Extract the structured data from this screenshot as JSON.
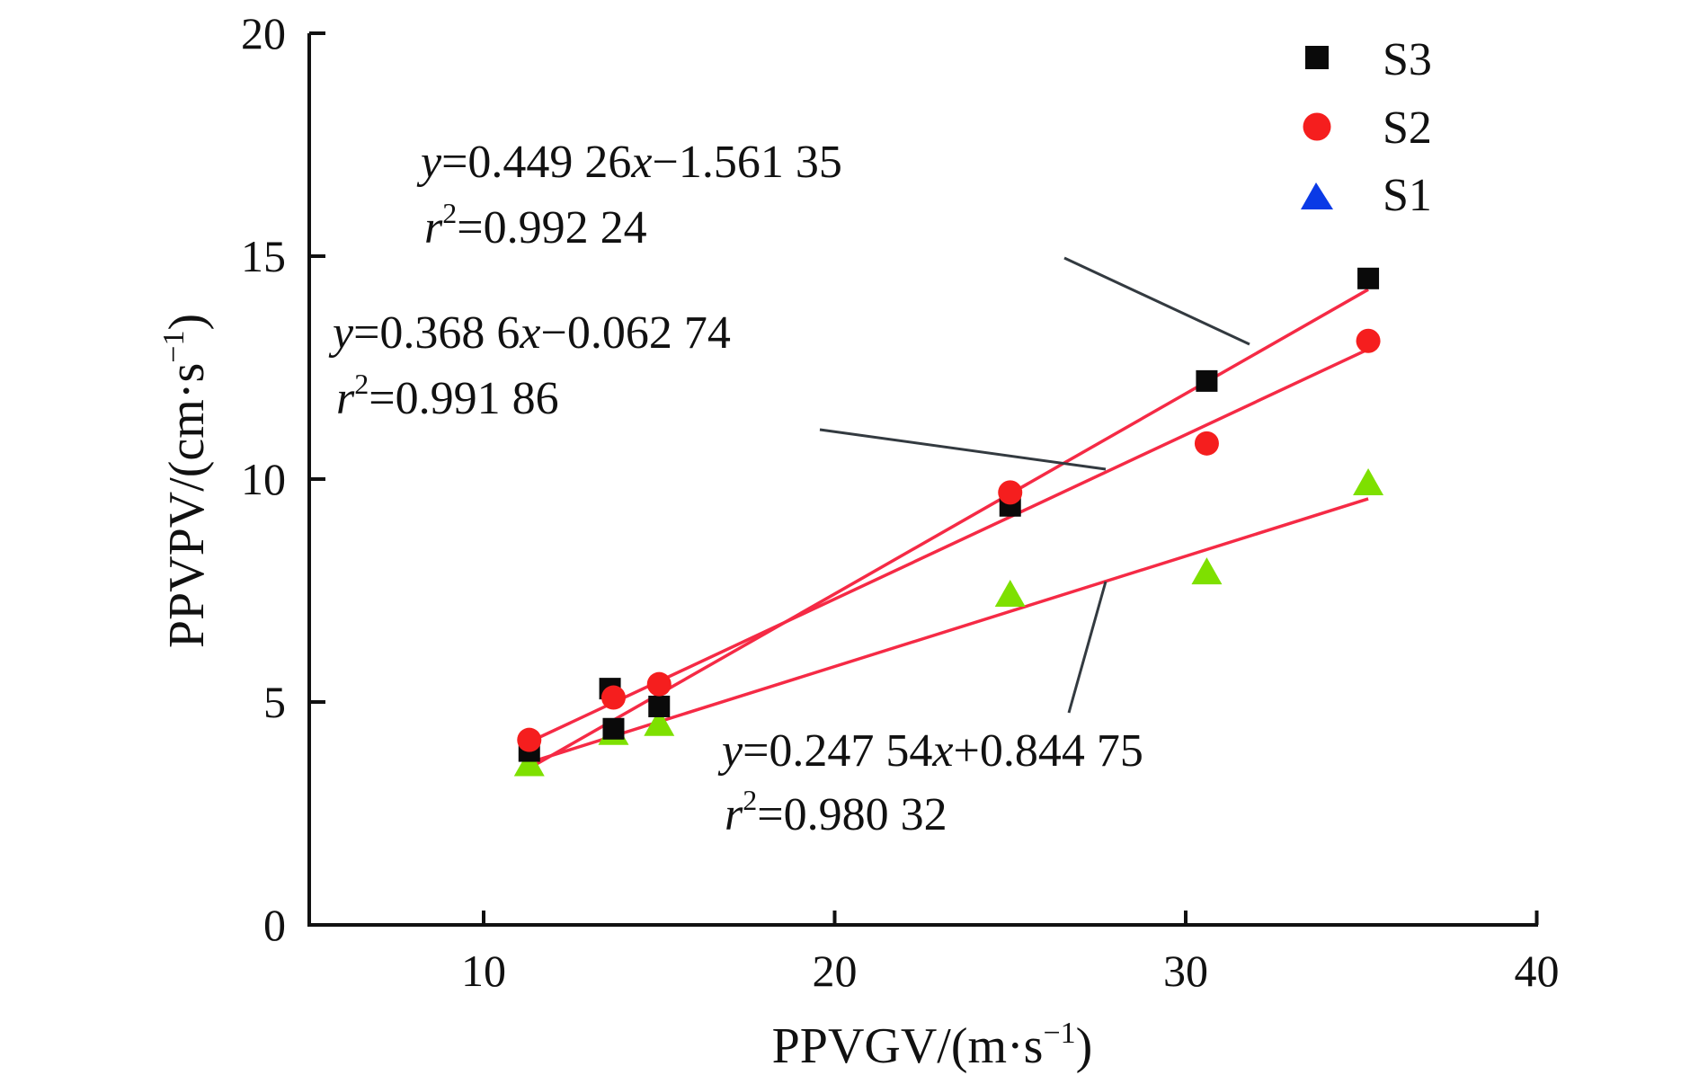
{
  "chart_data": {
    "type": "scatter",
    "title": "",
    "xlabel": "PPVGV/(m·s",
    "xlabel_sup": "−1",
    "xlabel_close": ")",
    "ylabel": "PPVPV/(cm·s",
    "ylabel_sup": "−1",
    "ylabel_close": ")",
    "xlim": [
      5,
      40
    ],
    "ylim": [
      0,
      20
    ],
    "xticks": [
      10,
      20,
      30,
      40
    ],
    "yticks": [
      0,
      5,
      10,
      15,
      20
    ],
    "xtick_labels": [
      "10",
      "20",
      "30",
      "40"
    ],
    "ytick_labels": [
      "0",
      "5",
      "10",
      "15",
      "20"
    ],
    "grid": false,
    "legend_position": "top-right",
    "series": [
      {
        "name": "S3",
        "marker": "square",
        "color": "#0a0a0a",
        "legend_color": "#0a0a0a",
        "x": [
          11.3,
          13.6,
          13.7,
          15.0,
          25.0,
          30.6,
          35.2
        ],
        "y": [
          3.9,
          5.3,
          4.4,
          4.9,
          9.4,
          12.2,
          14.5
        ],
        "fit": {
          "slope": 0.44926,
          "intercept": -1.56135,
          "x_range": [
            11.3,
            35.2
          ]
        },
        "equation": {
          "y_prefix": "y",
          "eq_body": "=0.449 26",
          "x_var": "x",
          "eq_tail": "−1.561 35",
          "r_var": "r",
          "r_sup": "2",
          "r_value": "=0.992 24"
        }
      },
      {
        "name": "S2",
        "marker": "circle",
        "color": "#f51e1e",
        "legend_color": "#f51e1e",
        "x": [
          11.3,
          13.7,
          15.0,
          25.0,
          30.6,
          35.2
        ],
        "y": [
          4.15,
          5.1,
          5.4,
          9.7,
          10.8,
          13.1
        ],
        "fit": {
          "slope": 0.3686,
          "intercept": -0.06274,
          "x_range": [
            11.3,
            35.2
          ]
        },
        "equation": {
          "y_prefix": "y",
          "eq_body": "=0.368 6",
          "x_var": "x",
          "eq_tail": "−0.062 74",
          "r_var": "r",
          "r_sup": "2",
          "r_value": "=0.991 86"
        }
      },
      {
        "name": "S1",
        "marker": "triangle",
        "color": "#7ee000",
        "legend_color": "#0a3ae6",
        "x": [
          11.3,
          13.7,
          15.0,
          25.0,
          30.6,
          35.2
        ],
        "y": [
          3.6,
          4.3,
          4.5,
          7.4,
          7.9,
          9.9
        ],
        "fit": {
          "slope": 0.24754,
          "intercept": 0.84475,
          "x_range": [
            11.3,
            35.2
          ]
        },
        "equation": {
          "y_prefix": "y",
          "eq_body": "=0.247 54",
          "x_var": "x",
          "eq_tail": "+0.844 75",
          "r_var": "r",
          "r_sup": "2",
          "r_value": "=0.980 32"
        }
      }
    ],
    "fit_line_color": "#f52a45",
    "leader_color": "#333a40"
  }
}
